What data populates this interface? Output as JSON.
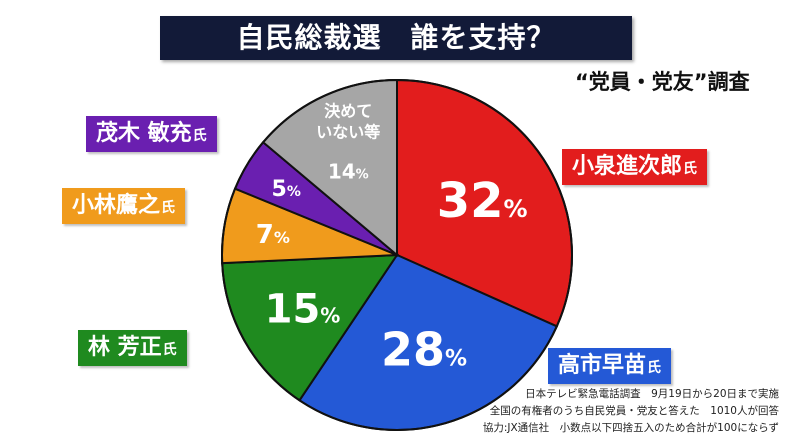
{
  "title": "自民総裁選　誰を支持？",
  "subtitle": "“党員・党友”調査",
  "suffix": "氏",
  "chart_data": {
    "type": "pie",
    "unit": "%",
    "slices": [
      {
        "key": "koizumi",
        "name": "小泉進次郎",
        "value": 32,
        "color": "#e21d1d"
      },
      {
        "key": "takaichi",
        "name": "高市早苗",
        "value": 28,
        "color": "#2459d6"
      },
      {
        "key": "hayashi",
        "name": "林 芳正",
        "value": 15,
        "color": "#1f8a1f"
      },
      {
        "key": "kobayashi",
        "name": "小林鷹之",
        "value": 7,
        "color": "#f09b1c"
      },
      {
        "key": "motegi",
        "name": "茂木 敏充",
        "value": 5,
        "color": "#6a1fb0"
      },
      {
        "key": "undecided",
        "name": "決めて いない等",
        "label_lines": [
          "決めて",
          "いない等"
        ],
        "value": 14,
        "color": "#a6a6a6"
      }
    ]
  },
  "labels": {
    "koizumi": "小泉進次郎",
    "takaichi": "高市早苗",
    "hayashi": "林 芳正",
    "kobayashi": "小林鷹之",
    "motegi": "茂木 敏充"
  },
  "footnote": [
    "日本テレビ緊急電話調査　9月19日から20日まで実施",
    "全国の有権者のうち自民党員・党友と答えた　1010人が回答",
    "協力:JX通信社　小数点以下四捨五入のため合計が100にならず"
  ]
}
